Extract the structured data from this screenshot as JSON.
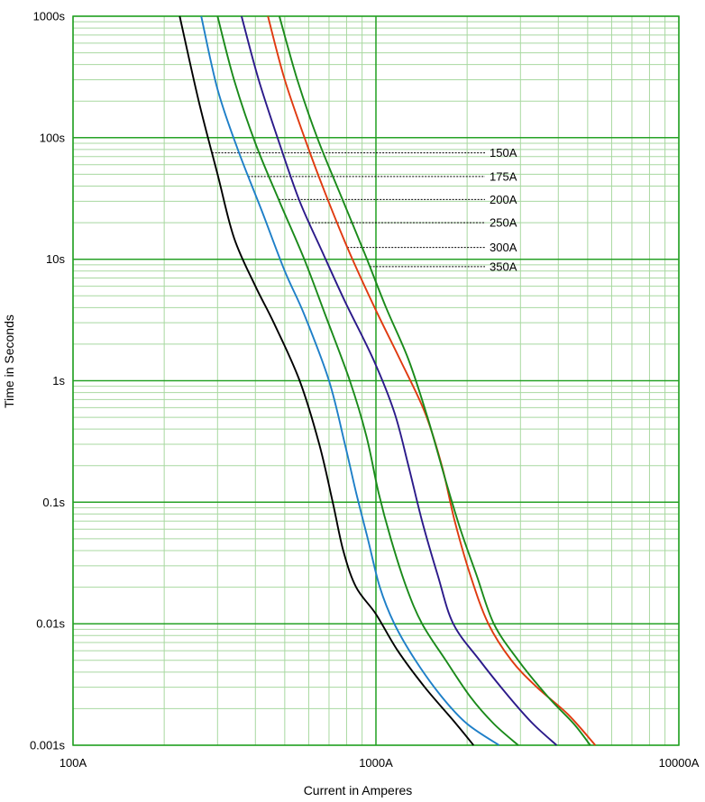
{
  "chart_data": {
    "type": "line",
    "title": "",
    "xlabel": "Current in Amperes",
    "ylabel": "Time in Seconds",
    "x_scale": "log",
    "y_scale": "log",
    "xlim": [
      100,
      10000
    ],
    "ylim": [
      0.001,
      1000
    ],
    "grid": true,
    "x_ticks": [
      {
        "value": 100,
        "label": "100A"
      },
      {
        "value": 1000,
        "label": "1000A"
      },
      {
        "value": 10000,
        "label": "10000A"
      }
    ],
    "y_ticks": [
      {
        "value": 1000,
        "label": "1000s"
      },
      {
        "value": 100,
        "label": "100s"
      },
      {
        "value": 10,
        "label": "10s"
      },
      {
        "value": 1,
        "label": "1s"
      },
      {
        "value": 0.1,
        "label": "0.1s"
      },
      {
        "value": 0.01,
        "label": "0.01s"
      },
      {
        "value": 0.001,
        "label": "0.001s"
      }
    ],
    "colors": {
      "grid_major": "#22a022",
      "grid_minor": "#a8d8a0",
      "leader": "#000000"
    },
    "series": [
      {
        "label": "150A",
        "color": "#000000",
        "points": [
          [
            225,
            1000
          ],
          [
            260,
            200
          ],
          [
            300,
            50
          ],
          [
            340,
            15
          ],
          [
            400,
            6
          ],
          [
            460,
            3
          ],
          [
            560,
            1
          ],
          [
            650,
            0.3
          ],
          [
            720,
            0.1
          ],
          [
            780,
            0.04
          ],
          [
            860,
            0.02
          ],
          [
            1000,
            0.012
          ],
          [
            1180,
            0.006
          ],
          [
            1450,
            0.003
          ],
          [
            1800,
            0.0016
          ],
          [
            2100,
            0.001
          ]
        ],
        "label_y": 75
      },
      {
        "label": "175A",
        "color": "#1e7fc8",
        "points": [
          [
            265,
            1000
          ],
          [
            300,
            250
          ],
          [
            350,
            80
          ],
          [
            420,
            25
          ],
          [
            500,
            8
          ],
          [
            580,
            3.5
          ],
          [
            700,
            1
          ],
          [
            790,
            0.3
          ],
          [
            860,
            0.12
          ],
          [
            940,
            0.05
          ],
          [
            1030,
            0.02
          ],
          [
            1150,
            0.01
          ],
          [
            1350,
            0.005
          ],
          [
            1650,
            0.0025
          ],
          [
            2000,
            0.0015
          ],
          [
            2550,
            0.001
          ]
        ],
        "label_y": 48
      },
      {
        "label": "200A",
        "color": "#1a8a1a",
        "points": [
          [
            300,
            1000
          ],
          [
            340,
            300
          ],
          [
            400,
            90
          ],
          [
            480,
            30
          ],
          [
            580,
            10
          ],
          [
            680,
            3.5
          ],
          [
            820,
            1
          ],
          [
            930,
            0.35
          ],
          [
            1020,
            0.12
          ],
          [
            1120,
            0.05
          ],
          [
            1260,
            0.02
          ],
          [
            1420,
            0.01
          ],
          [
            1700,
            0.005
          ],
          [
            2050,
            0.0025
          ],
          [
            2450,
            0.0015
          ],
          [
            2950,
            0.001
          ]
        ],
        "label_y": 31
      },
      {
        "label": "250A",
        "color": "#2b1a8a",
        "points": [
          [
            360,
            1000
          ],
          [
            410,
            300
          ],
          [
            480,
            90
          ],
          [
            560,
            30
          ],
          [
            660,
            12
          ],
          [
            790,
            4.5
          ],
          [
            980,
            1.5
          ],
          [
            1150,
            0.55
          ],
          [
            1280,
            0.2
          ],
          [
            1420,
            0.07
          ],
          [
            1600,
            0.025
          ],
          [
            1800,
            0.01
          ],
          [
            2200,
            0.005
          ],
          [
            2750,
            0.0025
          ],
          [
            3300,
            0.0015
          ],
          [
            3950,
            0.001
          ]
        ],
        "label_y": 20
      },
      {
        "label": "300A",
        "color": "#e03a10",
        "points": [
          [
            440,
            1000
          ],
          [
            500,
            300
          ],
          [
            590,
            90
          ],
          [
            680,
            35
          ],
          [
            810,
            12
          ],
          [
            990,
            4
          ],
          [
            1200,
            1.5
          ],
          [
            1450,
            0.55
          ],
          [
            1650,
            0.2
          ],
          [
            1820,
            0.07
          ],
          [
            2050,
            0.025
          ],
          [
            2350,
            0.01
          ],
          [
            2800,
            0.005
          ],
          [
            3400,
            0.003
          ],
          [
            4300,
            0.0018
          ],
          [
            5300,
            0.001
          ]
        ],
        "label_y": 12.5
      },
      {
        "label": "350A",
        "color": "#1a8a1a",
        "points": [
          [
            480,
            1000
          ],
          [
            550,
            300
          ],
          [
            640,
            100
          ],
          [
            760,
            35
          ],
          [
            920,
            11
          ],
          [
            1080,
            4
          ],
          [
            1280,
            1.5
          ],
          [
            1480,
            0.5
          ],
          [
            1700,
            0.15
          ],
          [
            1900,
            0.06
          ],
          [
            2150,
            0.025
          ],
          [
            2450,
            0.01
          ],
          [
            2950,
            0.005
          ],
          [
            3700,
            0.0025
          ],
          [
            4500,
            0.0015
          ],
          [
            5100,
            0.001
          ]
        ],
        "label_y": 8.7
      }
    ]
  }
}
